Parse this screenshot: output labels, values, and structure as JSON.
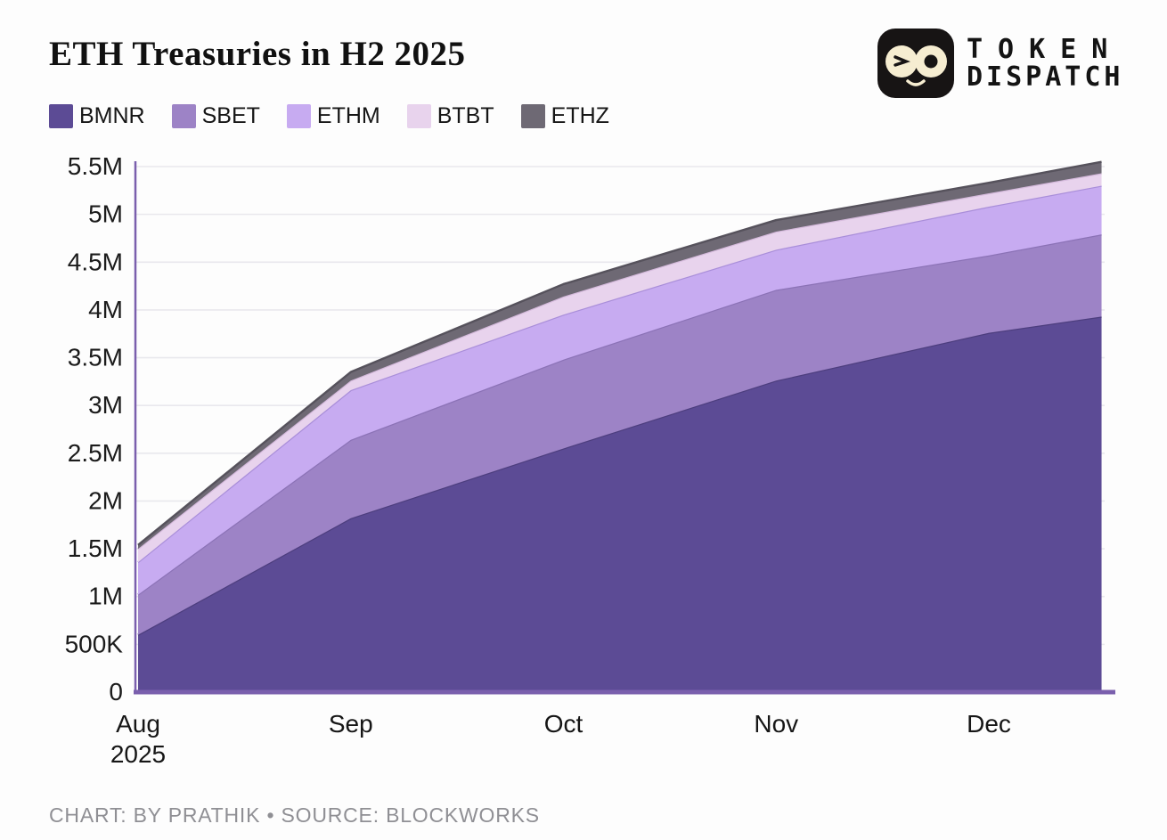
{
  "header": {
    "title": "ETH Treasuries in H2 2025",
    "logo": {
      "line1": "TOKEN",
      "line2": "DISPATCH",
      "mascot": "winking-face-with-glasses",
      "bg_color": "#171414",
      "lens_color": "#f6edd1"
    }
  },
  "footer": {
    "caption": "CHART: BY PRATHIK • SOURCE: BLOCKWORKS"
  },
  "style_colors": {
    "axis": "#7a5fad",
    "grid": "#e9e8ed",
    "tick_text": "#1b1b1b",
    "background": "#fdfdfd"
  },
  "chart_data": {
    "type": "area",
    "stacked": true,
    "title": "ETH Treasuries in H2 2025",
    "x_unit": "months since Aug 1 2025",
    "x": [
      0,
      1,
      2,
      3,
      4,
      4.53
    ],
    "x_ticks": [
      0,
      1,
      2,
      3,
      4
    ],
    "x_tick_labels": [
      [
        "Aug",
        "2025"
      ],
      [
        "Sep"
      ],
      [
        "Oct"
      ],
      [
        "Nov"
      ],
      [
        "Dec"
      ]
    ],
    "y_unit": "ETH",
    "ylim": [
      0,
      5.5
    ],
    "y_ticks": [
      0,
      0.5,
      1,
      1.5,
      2,
      2.5,
      3,
      3.5,
      4,
      4.5,
      5,
      5.5
    ],
    "y_tick_labels": [
      "0",
      "500K",
      "1M",
      "1.5M",
      "2M",
      "2.5M",
      "3M",
      "3.5M",
      "4M",
      "4.5M",
      "5M",
      "5.5M"
    ],
    "grid": true,
    "legend_position": "top-left",
    "series": [
      {
        "name": "BMNR",
        "color": "#5c4b95",
        "edge": "#4d3e7e",
        "values_millions": [
          0.6,
          1.82,
          2.55,
          3.26,
          3.76,
          3.93
        ]
      },
      {
        "name": "SBET",
        "color": "#9d83c6",
        "edge": "#8b72b6",
        "values_millions": [
          0.42,
          0.82,
          0.93,
          0.95,
          0.81,
          0.86
        ]
      },
      {
        "name": "ETHM",
        "color": "#c7abf1",
        "edge": "#a98ed9",
        "values_millions": [
          0.34,
          0.52,
          0.47,
          0.42,
          0.51,
          0.51
        ]
      },
      {
        "name": "BTBT",
        "color": "#e8d3ed",
        "edge": "#d5badc",
        "values_millions": [
          0.14,
          0.1,
          0.19,
          0.19,
          0.14,
          0.13
        ]
      },
      {
        "name": "ETHZ",
        "color": "#6e6974",
        "edge": "#56525c",
        "values_millions": [
          0.04,
          0.09,
          0.13,
          0.12,
          0.11,
          0.12
        ]
      }
    ],
    "totals_millions": [
      1.54,
      3.35,
      4.27,
      4.94,
      5.33,
      5.55
    ]
  }
}
